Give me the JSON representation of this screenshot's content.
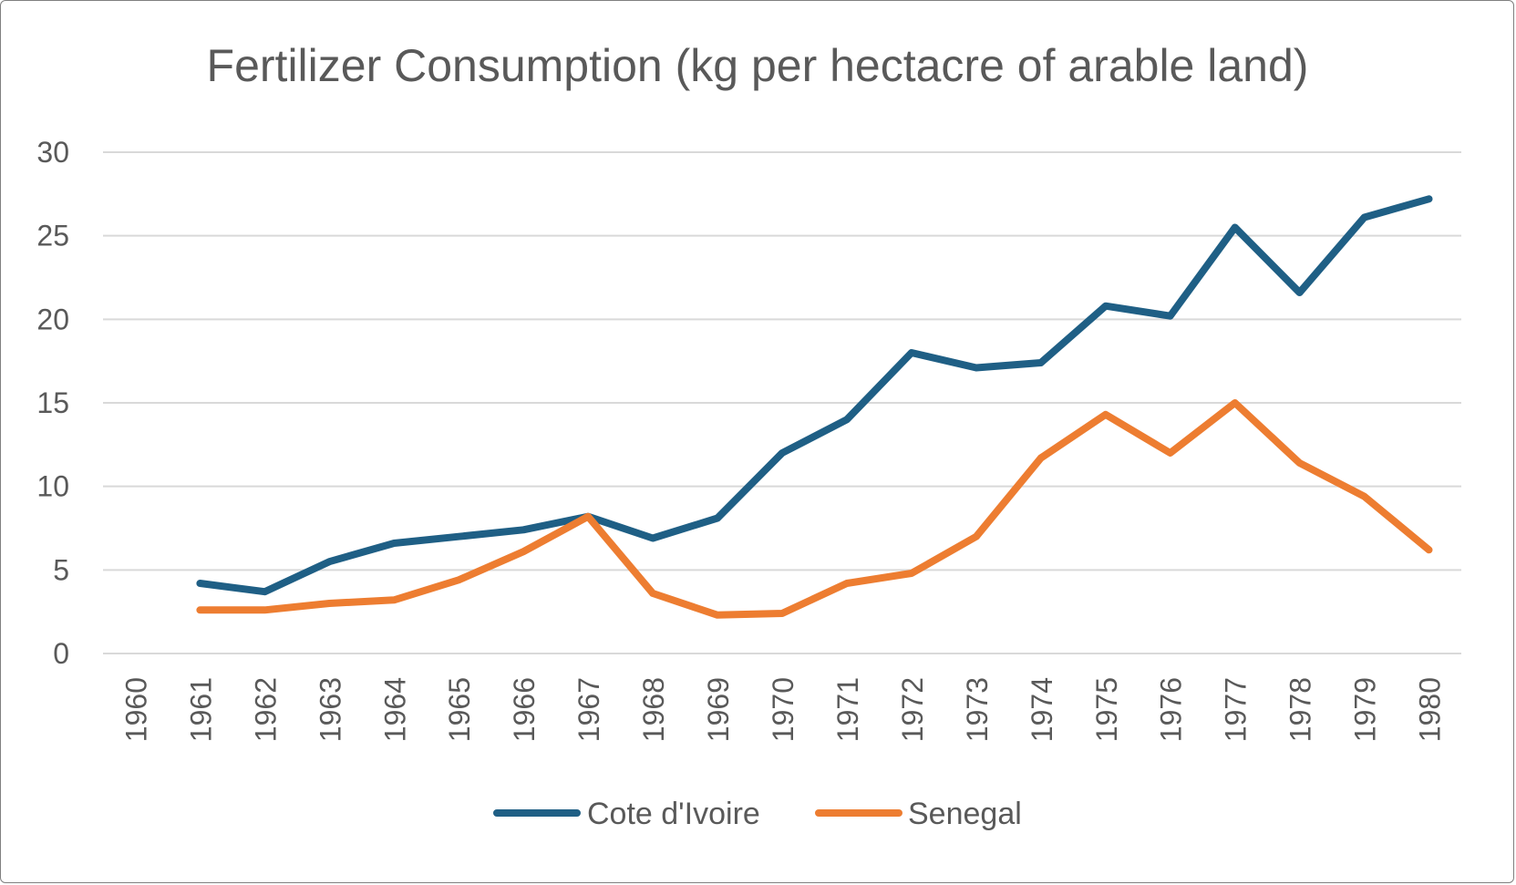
{
  "chart_data": {
    "type": "line",
    "title": "Fertilizer Consumption (kg per hectacre of arable land)",
    "xlabel": "",
    "ylabel": "",
    "categories": [
      "1960",
      "1961",
      "1962",
      "1963",
      "1964",
      "1965",
      "1966",
      "1967",
      "1968",
      "1969",
      "1970",
      "1971",
      "1972",
      "1973",
      "1974",
      "1975",
      "1976",
      "1977",
      "1978",
      "1979",
      "1980"
    ],
    "yticks": [
      "0",
      "5",
      "10",
      "15",
      "20",
      "25",
      "30"
    ],
    "ylim": [
      0,
      30
    ],
    "grid": true,
    "legend_position": "bottom",
    "series": [
      {
        "name": "Cote d'Ivoire",
        "color": "#1f5f85",
        "values": [
          null,
          4.2,
          3.7,
          5.5,
          6.6,
          7.0,
          7.4,
          8.2,
          6.9,
          8.1,
          12.0,
          14.0,
          18.0,
          17.1,
          17.4,
          20.8,
          20.2,
          25.5,
          21.6,
          26.1,
          27.2
        ]
      },
      {
        "name": "Senegal",
        "color": "#ed7d31",
        "values": [
          null,
          2.6,
          2.6,
          3.0,
          3.2,
          4.4,
          6.1,
          8.2,
          3.6,
          2.3,
          2.4,
          4.2,
          4.8,
          7.0,
          11.7,
          14.3,
          12.0,
          15.0,
          11.4,
          9.4,
          6.2
        ]
      }
    ]
  }
}
